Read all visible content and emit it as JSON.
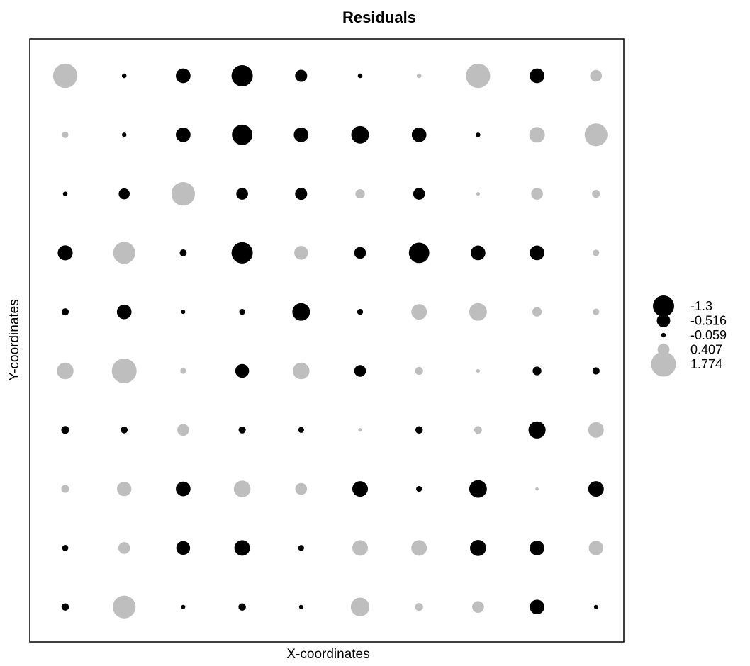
{
  "chart_data": {
    "type": "bubble-grid",
    "title": "Residuals",
    "xlabel": "X-coordinates",
    "ylabel": "Y-coordinates",
    "grid": false,
    "legend_position": "right",
    "colors": {
      "negative": "#000000",
      "positive": "#bebebe",
      "frame": "#000000"
    },
    "rows": 10,
    "cols": 10,
    "values": [
      [
        1.7,
        -0.06,
        -0.62,
        -1.3,
        -0.42,
        -0.06,
        0.06,
        1.7,
        -0.62,
        0.4
      ],
      [
        0.12,
        -0.06,
        -0.62,
        -1.2,
        -0.62,
        -0.9,
        -0.62,
        -0.06,
        0.7,
        1.5
      ],
      [
        -0.06,
        -0.35,
        1.6,
        -0.4,
        -0.42,
        0.25,
        -0.4,
        0.04,
        0.4,
        0.18
      ],
      [
        -0.65,
        1.4,
        -0.14,
        -1.3,
        0.55,
        -0.4,
        -1.2,
        -0.62,
        -0.62,
        0.12
      ],
      [
        -0.15,
        -0.62,
        -0.05,
        -0.1,
        -0.9,
        -0.1,
        0.7,
        0.9,
        0.25,
        0.12
      ],
      [
        0.8,
        1.77,
        0.1,
        -0.55,
        0.8,
        -0.4,
        0.18,
        0.04,
        -0.22,
        -0.15
      ],
      [
        -0.18,
        -0.14,
        0.4,
        -0.15,
        -0.1,
        0.04,
        -0.16,
        0.17,
        -0.85,
        0.7
      ],
      [
        0.18,
        0.6,
        -0.62,
        0.8,
        0.4,
        -0.7,
        -0.1,
        -0.9,
        0.03,
        -0.7
      ],
      [
        -0.11,
        0.4,
        -0.55,
        -0.7,
        -0.1,
        0.7,
        0.7,
        -0.75,
        -0.62,
        0.6
      ],
      [
        -0.16,
        1.5,
        -0.05,
        -0.16,
        -0.05,
        1.0,
        0.18,
        0.4,
        -0.62,
        -0.05
      ]
    ],
    "legend": [
      {
        "label": "-1.3",
        "value": -1.3
      },
      {
        "label": "-0.516",
        "value": -0.516
      },
      {
        "label": "-0.059",
        "value": -0.059
      },
      {
        "label": "0.407",
        "value": 0.407
      },
      {
        "label": "1.774",
        "value": 1.774
      }
    ]
  }
}
